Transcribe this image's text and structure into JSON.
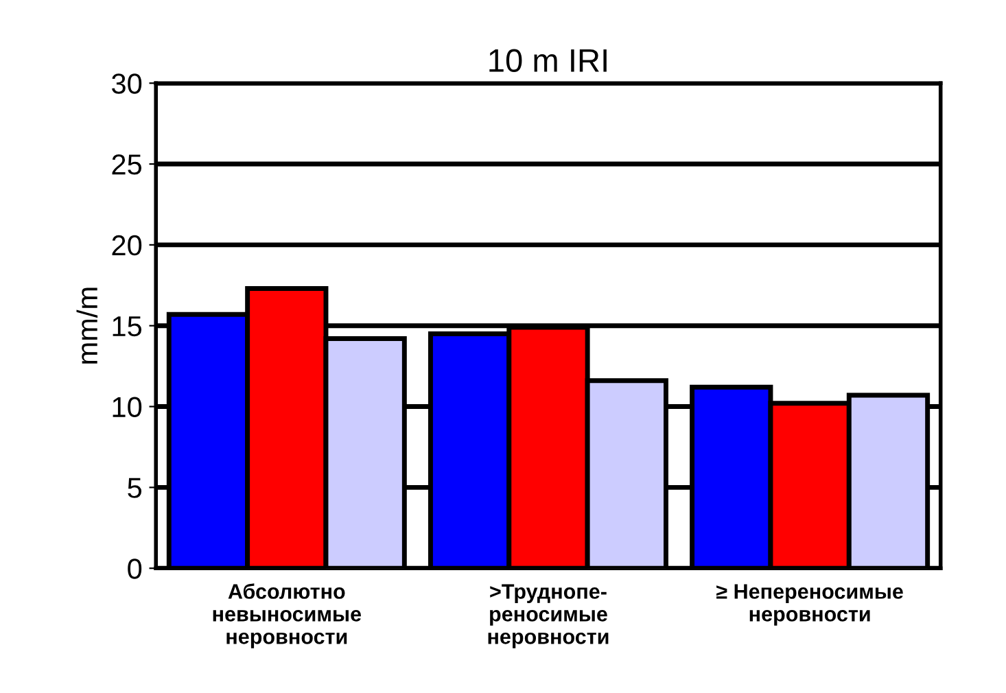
{
  "chart_data": {
    "type": "bar",
    "title": "10 m IRI",
    "ylabel": "mm/m",
    "categories": [
      "Абсолютно\nневыносимые\nнеровности",
      ">Труднопе-\nреносимые\nнеровности",
      "≥ Непереносимые\nнеровности"
    ],
    "series": [
      {
        "color": "#0000ff",
        "values": [
          15.7,
          14.5,
          11.2
        ]
      },
      {
        "color": "#ff0000",
        "values": [
          17.3,
          14.9,
          10.2
        ]
      },
      {
        "color": "#ccccff",
        "values": [
          14.2,
          11.6,
          10.7
        ]
      }
    ],
    "ylim": [
      0,
      30
    ],
    "yticks": [
      0,
      5,
      10,
      15,
      20,
      25,
      30
    ],
    "grid": "y",
    "legend": false
  }
}
